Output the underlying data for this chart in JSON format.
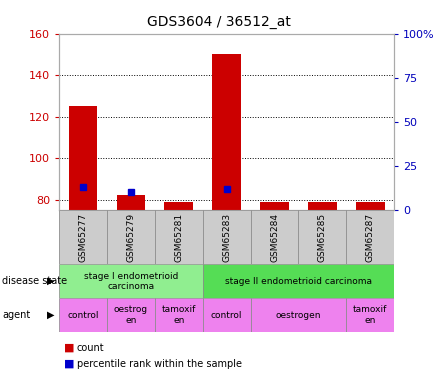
{
  "title": "GDS3604 / 36512_at",
  "samples": [
    "GSM65277",
    "GSM65279",
    "GSM65281",
    "GSM65283",
    "GSM65284",
    "GSM65285",
    "GSM65287"
  ],
  "count_values": [
    125,
    82,
    79,
    150,
    79,
    79,
    79
  ],
  "percentile_values": [
    13,
    10,
    null,
    12,
    null,
    null,
    null
  ],
  "ylim_left": [
    75,
    160
  ],
  "ylim_right": [
    0,
    100
  ],
  "yticks_left": [
    80,
    100,
    120,
    140,
    160
  ],
  "yticks_right": [
    0,
    25,
    50,
    75,
    100
  ],
  "ytick_right_labels": [
    "0",
    "25",
    "50",
    "75",
    "100%"
  ],
  "disease_state": [
    {
      "label": "stage I endometrioid\ncarcinoma",
      "start": 0,
      "end": 3,
      "color": "#90ee90"
    },
    {
      "label": "stage II endometrioid carcinoma",
      "start": 3,
      "end": 7,
      "color": "#55dd55"
    }
  ],
  "agent": [
    {
      "label": "control",
      "start": 0,
      "end": 1,
      "color": "#ee82ee"
    },
    {
      "label": "oestrog\nen",
      "start": 1,
      "end": 2,
      "color": "#ee82ee"
    },
    {
      "label": "tamoxif\nen",
      "start": 2,
      "end": 3,
      "color": "#ee82ee"
    },
    {
      "label": "control",
      "start": 3,
      "end": 4,
      "color": "#ee82ee"
    },
    {
      "label": "oestrogen",
      "start": 4,
      "end": 6,
      "color": "#ee82ee"
    },
    {
      "label": "tamoxif\nen",
      "start": 6,
      "end": 7,
      "color": "#ee82ee"
    }
  ],
  "bar_color": "#cc0000",
  "dot_color": "#0000cc",
  "axis_color_left": "#cc0000",
  "axis_color_right": "#0000bb",
  "sample_bg": "#cccccc",
  "border_color": "#888888",
  "fig_width": 4.38,
  "fig_height": 3.75,
  "dpi": 100
}
